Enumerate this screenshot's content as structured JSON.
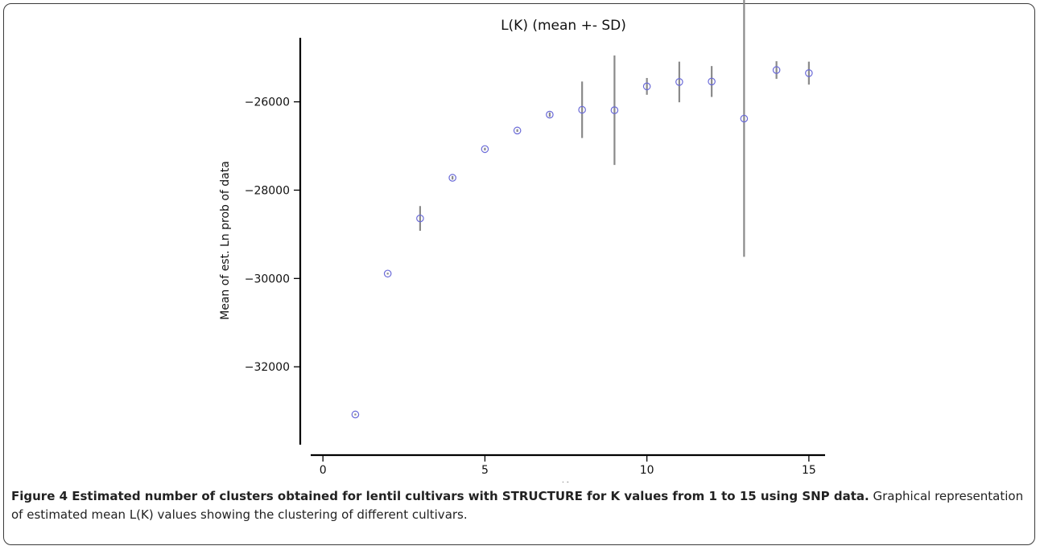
{
  "chart_data": {
    "type": "scatter",
    "title": "L(K) (mean +- SD)",
    "xlabel": "K",
    "ylabel": "Mean of est. Ln prob of data",
    "xlim": [
      -0.7,
      15.5
    ],
    "ylim": [
      -34000,
      -24550
    ],
    "xticks": [
      0,
      5,
      10,
      15
    ],
    "yticks": [
      -32000,
      -30000,
      -28000,
      -26000
    ],
    "xtick_labels": [
      "0",
      "5",
      "10",
      "15"
    ],
    "ytick_labels": [
      "−32000",
      "−30000",
      "−28000",
      "−26000"
    ],
    "grid": false,
    "marker_color": "#6a6ad8",
    "errorbar_color": "#8a8a8a",
    "series": [
      {
        "x": [
          1,
          2,
          3,
          4,
          5,
          6,
          7,
          8,
          9,
          10,
          11,
          12,
          13,
          14,
          15
        ],
        "y": [
          -33080,
          -29890,
          -28640,
          -27720,
          -27070,
          -26650,
          -26290,
          -26180,
          -26190,
          -25650,
          -25550,
          -25540,
          -26380,
          -25280,
          -25350
        ],
        "err": [
          20,
          20,
          280,
          40,
          30,
          30,
          50,
          640,
          1240,
          190,
          460,
          350,
          3130,
          200,
          260
        ]
      }
    ]
  },
  "caption": {
    "bold": "Figure 4 Estimated number of clusters obtained for lentil cultivars with STRUCTURE for K values from 1 to 15 using SNP data.",
    "text": " Graphical representation of estimated mean L(K) values showing the clustering of different cultivars."
  }
}
